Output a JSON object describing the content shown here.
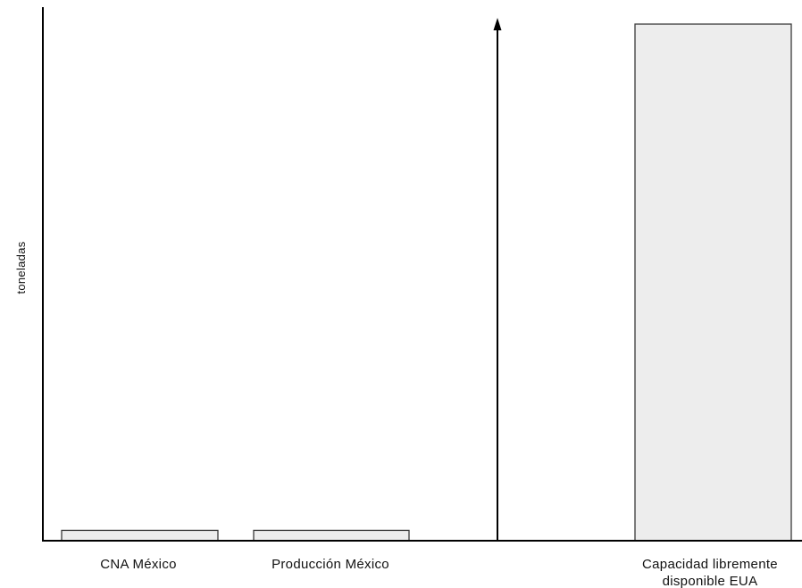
{
  "chart_data": {
    "type": "bar",
    "title": "",
    "xlabel": "",
    "ylabel": "toneladas",
    "categories": [
      "CNA México",
      "Producción México",
      "Capacidad libremente disponible EUA"
    ],
    "category_lines": [
      [
        "CNA México"
      ],
      [
        "Producción México"
      ],
      [
        "Capacidad libremente",
        "disponible EUA"
      ]
    ],
    "values": [
      2,
      2,
      100
    ],
    "ylim": [
      0,
      103
    ],
    "grid": false,
    "axis_break_arrow": true,
    "colors": {
      "bar_fill": "#ededed",
      "bar_stroke": "#3a3a3a",
      "axis": "#000000"
    }
  }
}
